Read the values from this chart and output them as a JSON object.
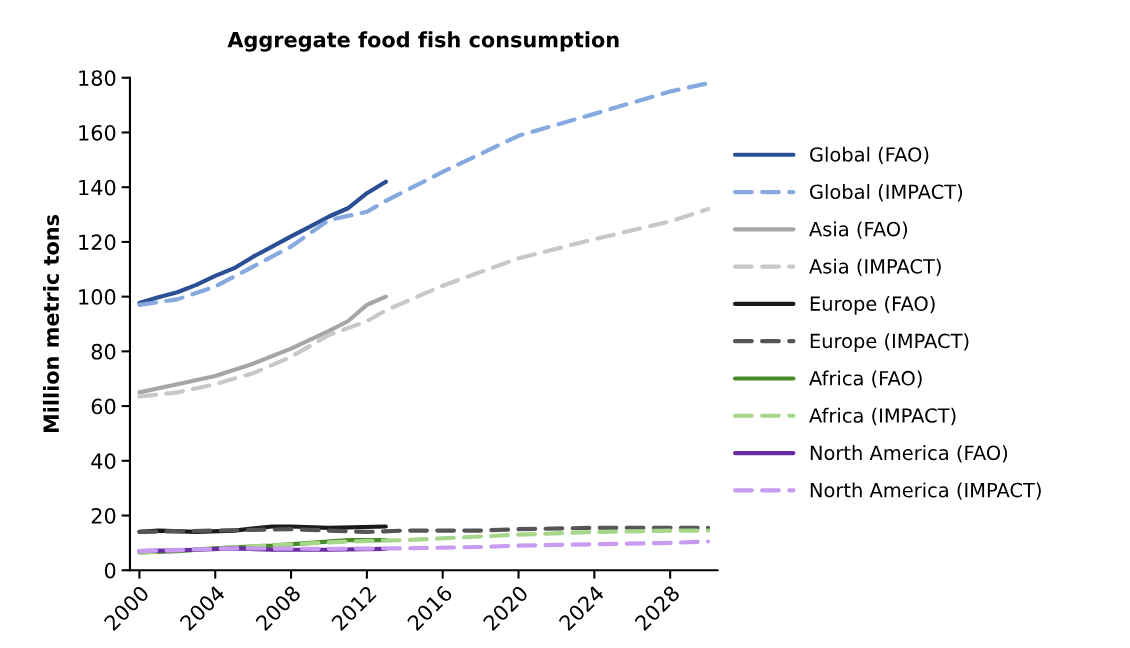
{
  "chart_data": {
    "type": "line",
    "title": "Aggregate food fish consumption",
    "ylabel": "Million metric tons",
    "xlim": [
      1999.5,
      2030.5
    ],
    "ylim": [
      0,
      180
    ],
    "yticks": [
      0,
      20,
      40,
      60,
      80,
      100,
      120,
      140,
      160,
      180
    ],
    "xticks": [
      {
        "value": 2000,
        "label": "2000"
      },
      {
        "value": 2004,
        "label": "2004"
      },
      {
        "value": 2008,
        "label": "2008"
      },
      {
        "value": 2012,
        "label": "2012"
      },
      {
        "value": 2016,
        "label": "2016"
      },
      {
        "value": 2020,
        "label": "2020"
      },
      {
        "value": 2024,
        "label": "2024"
      },
      {
        "value": 2028,
        "label": "2028"
      }
    ],
    "grid": false,
    "legend": "right",
    "marker": "none",
    "series": [
      {
        "name": "Global (FAO)",
        "color": "#2b4f94",
        "line_style": "solid",
        "x": [
          2000,
          2001,
          2002,
          2003,
          2004,
          2005,
          2006,
          2007,
          2008,
          2009,
          2010,
          2011,
          2012,
          2013
        ],
        "values": [
          97.7,
          99.8,
          101.6,
          104.3,
          107.6,
          110.4,
          114.6,
          118.3,
          122,
          125.6,
          129.3,
          132.3,
          137.8,
          142
        ]
      },
      {
        "name": "Global (IMPACT)",
        "color": "#86a9e0",
        "line_style": "dashed",
        "x": [
          2000,
          2002,
          2004,
          2006,
          2008,
          2010,
          2012,
          2013,
          2016,
          2020,
          2024,
          2028,
          2030
        ],
        "values": [
          97,
          99,
          103.7,
          111,
          118.3,
          128,
          131,
          135,
          145.6,
          158.8,
          166.8,
          175,
          178
        ]
      },
      {
        "name": "Asia (FAO)",
        "color": "#a6a6a6",
        "line_style": "solid",
        "x": [
          2000,
          2002,
          2004,
          2006,
          2008,
          2010,
          2011,
          2012,
          2013
        ],
        "values": [
          65,
          68,
          71,
          75.5,
          81,
          87.5,
          91,
          97,
          100
        ]
      },
      {
        "name": "Asia (IMPACT)",
        "color": "#c8c8c8",
        "line_style": "dashed",
        "x": [
          2000,
          2002,
          2004,
          2006,
          2008,
          2010,
          2012,
          2013,
          2016,
          2020,
          2024,
          2028,
          2030
        ],
        "values": [
          63.5,
          65,
          68,
          72,
          78,
          86,
          91,
          95,
          104,
          114,
          121,
          127.5,
          132
        ]
      },
      {
        "name": "Europe (FAO)",
        "color": "#1a1a1a",
        "line_style": "solid",
        "x": [
          2000,
          2001,
          2003,
          2005,
          2007,
          2008,
          2010,
          2013
        ],
        "values": [
          14,
          14.5,
          14,
          14.5,
          16,
          16,
          15.5,
          16
        ]
      },
      {
        "name": "Europe (IMPACT)",
        "color": "#555555",
        "line_style": "dashed",
        "x": [
          2000,
          2004,
          2008,
          2012,
          2014,
          2018,
          2020,
          2024,
          2030
        ],
        "values": [
          14,
          14.5,
          15,
          14,
          14.5,
          14.5,
          15,
          15.5,
          15.5
        ]
      },
      {
        "name": "Africa (FAO)",
        "color": "#4a8a2a",
        "line_style": "solid",
        "x": [
          2000,
          2002,
          2004,
          2007,
          2009,
          2011,
          2013
        ],
        "values": [
          6.5,
          7,
          8,
          9,
          10,
          11,
          11
        ]
      },
      {
        "name": "Africa (IMPACT)",
        "color": "#a6d68a",
        "line_style": "dashed",
        "x": [
          2000,
          2004,
          2008,
          2011,
          2014,
          2017,
          2020,
          2024,
          2028,
          2030
        ],
        "values": [
          6.5,
          8,
          9.5,
          10.5,
          11,
          12,
          13,
          14,
          14.5,
          14.5
        ]
      },
      {
        "name": "North America (FAO)",
        "color": "#6a2aa0",
        "line_style": "solid",
        "x": [
          2000,
          2003,
          2005,
          2007,
          2010,
          2013
        ],
        "values": [
          7,
          7.5,
          8,
          7.5,
          7.5,
          7.8
        ]
      },
      {
        "name": "North America (IMPACT)",
        "color": "#c89af0",
        "line_style": "dashed",
        "x": [
          2000,
          2005,
          2010,
          2014,
          2018,
          2020,
          2024,
          2028,
          2030
        ],
        "values": [
          7,
          8,
          7.8,
          8,
          8.5,
          9,
          9.5,
          10,
          10.5
        ]
      }
    ]
  }
}
